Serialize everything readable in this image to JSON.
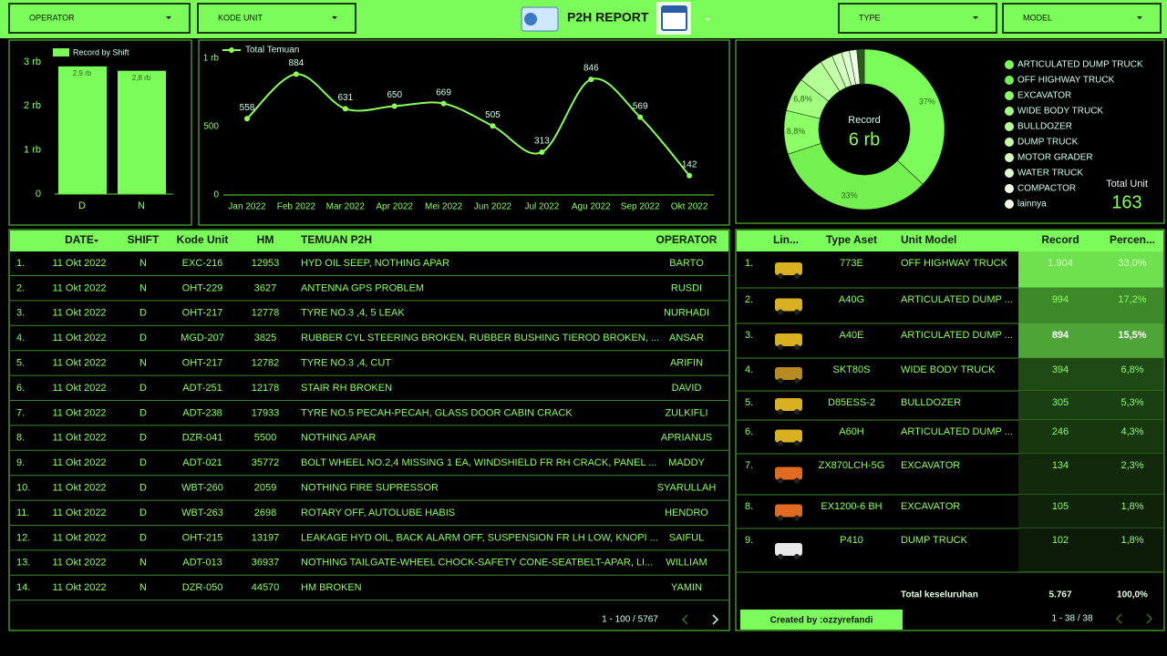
{
  "header": {
    "filters": [
      "OPERATOR",
      "KODE UNIT",
      "TYPE",
      "MODEL"
    ],
    "title": "P2H REPORT"
  },
  "chart_data": [
    {
      "type": "bar",
      "legend": "Record by Shift",
      "categories": [
        "D",
        "N"
      ],
      "values": [
        2900,
        2800
      ],
      "value_labels": [
        "2,9 rb",
        "2,8 rb"
      ],
      "color": "#7cfc5a",
      "ylim": [
        0,
        3000
      ],
      "yticks": [
        0,
        {
          "value": 1000,
          "label": "1 rb"
        },
        {
          "value": 2000,
          "label": "2 rb"
        },
        {
          "value": 3000,
          "label": "3 rb"
        }
      ]
    },
    {
      "type": "line",
      "series": [
        {
          "name": "Total Temuan",
          "color": "#8cff5c",
          "values": [
            558,
            884,
            631,
            650,
            669,
            505,
            313,
            846,
            569,
            142
          ]
        }
      ],
      "categories": [
        "Jan 2022",
        "Feb 2022",
        "Mar 2022",
        "Apr 2022",
        "Mei 2022",
        "Jun 2022",
        "Jul 2022",
        "Agu 2022",
        "Sep 2022",
        "Okt 2022"
      ],
      "ylim": [
        0,
        1000
      ],
      "yticks": [
        0,
        500,
        {
          "value": 1000,
          "label": "1 rb"
        }
      ]
    },
    {
      "type": "pie",
      "center_label": "Record",
      "center_value": "6 rb",
      "categories": [
        "ARTICULATED DUMP TRUCK",
        "OFF HIGHWAY TRUCK",
        "EXCAVATOR",
        "WIDE BODY TRUCK",
        "BULLDOZER",
        "DUMP TRUCK",
        "MOTOR GRADER",
        "WATER TRUCK",
        "COMPACTOR",
        "lainnya"
      ],
      "values": [
        37,
        33,
        8.8,
        6.8,
        5.3,
        2.5,
        2,
        1.6,
        1.5,
        1.5
      ],
      "value_labels": [
        "37%",
        "33%",
        "8,8%",
        "6,8%",
        null,
        null,
        null,
        null,
        null,
        null
      ],
      "colors": [
        "#7cfc5a",
        "#74f051",
        "#8cff66",
        "#a2ff80",
        "#b4ff96",
        "#c4ffaa",
        "#d2ffbe",
        "#e0ffd2",
        "#eeffe6",
        "#2e5a22"
      ]
    }
  ],
  "scorecard": {
    "label": "Total Unit",
    "value": "163"
  },
  "findings_table": {
    "columns": [
      "DATE",
      "SHIFT",
      "Kode Unit",
      "HM",
      "TEMUAN P2H",
      "OPERATOR"
    ],
    "rows": [
      [
        "1.",
        "11 Okt 2022",
        "N",
        "EXC-216",
        "12953",
        "HYD OIL SEEP, NOTHING APAR",
        "BARTO"
      ],
      [
        "2.",
        "11 Okt 2022",
        "N",
        "OHT-229",
        "3627",
        "ANTENNA GPS PROBLEM",
        "RUSDI"
      ],
      [
        "3.",
        "11 Okt 2022",
        "D",
        "OHT-217",
        "12778",
        "TYRE NO.3 ,4, 5 LEAK",
        "NURHADI"
      ],
      [
        "4.",
        "11 Okt 2022",
        "D",
        "MGD-207",
        "3825",
        "RUBBER CYL STEERING BROKEN, RUBBER BUSHING TIEROD BROKEN, ...",
        "ANSAR"
      ],
      [
        "5.",
        "11 Okt 2022",
        "N",
        "OHT-217",
        "12782",
        "TYRE NO.3 ,4, CUT",
        "ARIFIN"
      ],
      [
        "6.",
        "11 Okt 2022",
        "D",
        "ADT-251",
        "12178",
        "STAIR RH BROKEN",
        "DAVID"
      ],
      [
        "7.",
        "11 Okt 2022",
        "D",
        "ADT-238",
        "17933",
        "TYRE NO.5 PECAH-PECAH, GLASS DOOR CABIN CRACK",
        "ZULKIFLI"
      ],
      [
        "8.",
        "11 Okt 2022",
        "D",
        "DZR-041",
        "5500",
        "NOTHING APAR",
        "APRIANUS"
      ],
      [
        "9.",
        "11 Okt 2022",
        "D",
        "ADT-021",
        "35772",
        "BOLT WHEEL NO.2,4 MISSING 1 EA, WINDSHIELD FR RH CRACK, PANEL ...",
        "MADDY"
      ],
      [
        "10.",
        "11 Okt 2022",
        "D",
        "WBT-260",
        "2059",
        "NOTHING FIRE SUPRESSOR",
        "SYARULLAH"
      ],
      [
        "11.",
        "11 Okt 2022",
        "D",
        "WBT-263",
        "2698",
        "ROTARY OFF, AUTOLUBE HABIS",
        "HENDRO"
      ],
      [
        "12.",
        "11 Okt 2022",
        "D",
        "OHT-215",
        "13197",
        "LEAKAGE HYD OIL, BACK ALARM OFF, SUSPENSION FR LH LOW, KNOPI ...",
        "SAIFUL"
      ],
      [
        "13.",
        "11 Okt 2022",
        "N",
        "ADT-013",
        "36937",
        "NOTHING TAILGATE-WHEEL CHOCK-SAFETY CONE-SEATBELT-APAR, LI...",
        "WILLIAM"
      ],
      [
        "14.",
        "11 Okt 2022",
        "N",
        "DZR-050",
        "44570",
        "HM BROKEN",
        "YAMIN"
      ]
    ],
    "pagination": "1 - 100 / 5767"
  },
  "unit_table": {
    "columns": [
      "Lin...",
      "Type Aset",
      "Unit Model",
      "Record",
      "Percen..."
    ],
    "rows": [
      [
        "1.",
        "773E",
        "OFF HIGHWAY TRUCK",
        "1.904",
        "33,0%"
      ],
      [
        "2.",
        "A40G",
        "ARTICULATED DUMP ...",
        "994",
        "17,2%"
      ],
      [
        "3.",
        "A40E",
        "ARTICULATED DUMP ...",
        "894",
        "15,5%"
      ],
      [
        "4.",
        "SKT80S",
        "WIDE BODY TRUCK",
        "394",
        "6,8%"
      ],
      [
        "5.",
        "D85ESS-2",
        "BULLDOZER",
        "305",
        "5,3%"
      ],
      [
        "6.",
        "A60H",
        "ARTICULATED DUMP ...",
        "246",
        "4,3%"
      ],
      [
        "7.",
        "ZX870LCH-5G",
        "EXCAVATOR",
        "134",
        "2,3%"
      ],
      [
        "8.",
        "EX1200-6 BH",
        "EXCAVATOR",
        "105",
        "1,8%"
      ],
      [
        "9.",
        "P410",
        "DUMP TRUCK",
        "102",
        "1,8%"
      ]
    ],
    "total": [
      "Total keseluruhan",
      "5.767",
      "100,0%"
    ],
    "pagination": "1 - 38 / 38"
  },
  "credit": "Created by :ozzyrefandi"
}
